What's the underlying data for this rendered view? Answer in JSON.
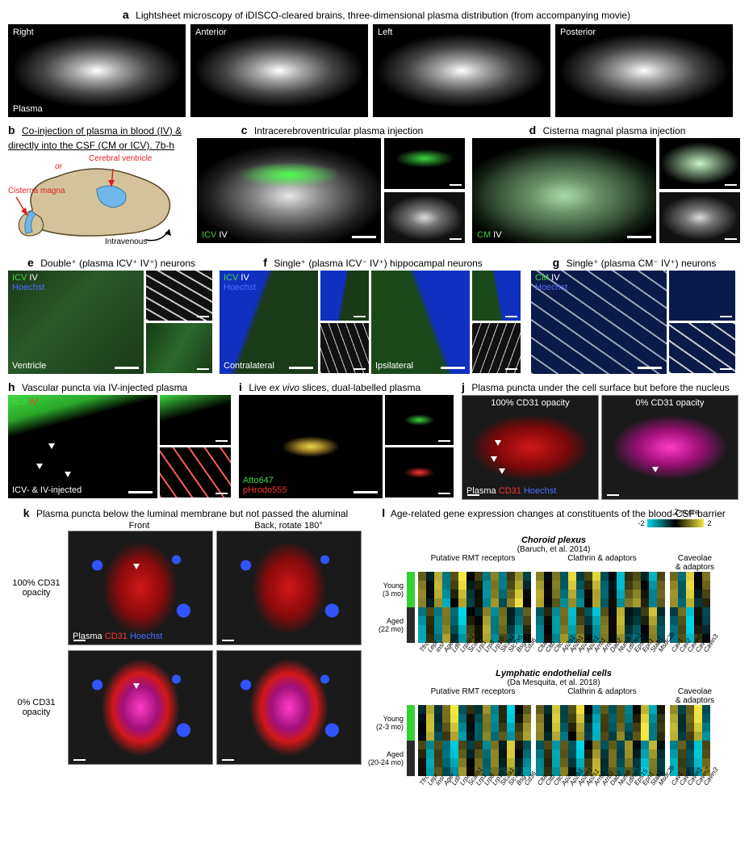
{
  "panelA": {
    "label": "a",
    "title": "Lightsheet microscopy of iDISCO-cleared brains, three-dimensional plasma distribution (from accompanying movie)",
    "views": [
      "Right",
      "Anterior",
      "Left",
      "Posterior"
    ],
    "bottom_label": "Plasma"
  },
  "panelB": {
    "label": "b",
    "title": "Co-injection of plasma in blood (IV) & directly into the CSF (CM or ICV). 7b-h",
    "labels": {
      "cm": "Cisterna magna",
      "cv": "Cerebral ventricle",
      "or": "or",
      "iv": "Intravenous"
    },
    "colors": {
      "label": "#e02020",
      "csf": "#6fb7e8",
      "brain_fill": "#d4c39a",
      "brain_stroke": "#5a4a2a"
    }
  },
  "panelC": {
    "label": "c",
    "title": "Intracerebroventricular plasma injection",
    "ch": [
      "ICV",
      "IV"
    ]
  },
  "panelD": {
    "label": "d",
    "title": "Cisterna magnal plasma injection",
    "ch": [
      "CM",
      "IV"
    ]
  },
  "panelE": {
    "label": "e",
    "title": "Double⁺ (plasma ICV⁺ IV⁺) neurons",
    "ch": [
      "ICV",
      "IV",
      "Hoechst"
    ],
    "bl": "Ventricle"
  },
  "panelF": {
    "label": "f",
    "title": "Single⁺ (plasma ICV⁻ IV⁺) hippocampal neurons",
    "ch": [
      "ICV",
      "IV",
      "Hoechst"
    ],
    "bl": [
      "Contralateral",
      "Ipsilateral"
    ]
  },
  "panelG": {
    "label": "g",
    "title": "Single⁺ (plasma CM⁻ IV⁺) neurons",
    "ch": [
      "CM",
      "IV",
      "Hoechst"
    ]
  },
  "panelH": {
    "label": "h",
    "title": "Vascular puncta via IV-injected plasma",
    "ch": [
      "ICV",
      "IV"
    ],
    "bl": "ICV- & IV-injected"
  },
  "panelI": {
    "label": "i",
    "title": "Live ex vivo slices, dual-labelled plasma",
    "ch": [
      "Atto647",
      "pHrodo555"
    ]
  },
  "panelJ": {
    "label": "j",
    "title": "Plasma puncta under the cell surface but before the nucleus",
    "cols": [
      "100% CD31 opacity",
      "0% CD31 opacity"
    ],
    "legend": [
      "Plasma",
      "CD31",
      "Hoechst"
    ]
  },
  "panelK": {
    "label": "k",
    "title": "Plasma puncta below the luminal membrane but not passed the aluminal",
    "cols": [
      "Front",
      "Back, rotate 180°"
    ],
    "rows": [
      "100% CD31 opacity",
      "0% CD31 opacity"
    ],
    "legend": [
      "Plasma",
      "CD31",
      "Hoechst"
    ]
  },
  "panelL": {
    "label": "l",
    "title": "Age-related gene expression changes at constituents of the blood-CSF barrier",
    "zscore": {
      "min": -2,
      "max": 2,
      "label": "Z-score"
    },
    "zscale_colors": [
      "#00d4e8",
      "#000000",
      "#f5e642"
    ],
    "datasets": [
      {
        "name": "Choroid plexus",
        "citation": "(Baruch, et al. 2014)",
        "row_labels": [
          "Young (3 mo)",
          "Aged (22 mo)"
        ],
        "age_colors": [
          "#35d035",
          "#2a2a2a"
        ],
        "n_reps": 4,
        "groups": [
          {
            "name": "Putative RMT receptors",
            "genes": [
              "Tfrc",
              "Lepr",
              "Insr",
              "Ager",
              "Ldlr",
              "Lrpap1",
              "Scarb1",
              "Lrp1",
              "Lrp8",
              "Lrp10",
              "Slc2a1",
              "Slc7a5",
              "Bsg",
              "Cd36"
            ],
            "young": [
              0.8,
              -0.5,
              1.2,
              -1.5,
              0.3,
              1.8,
              -0.2,
              0.5,
              -1.0,
              1.4,
              -0.8,
              0.9,
              1.6,
              -0.4
            ],
            "aged": [
              -1.2,
              0.7,
              -0.9,
              1.4,
              -0.6,
              -1.7,
              0.3,
              -0.2,
              1.1,
              -1.5,
              0.6,
              -0.7,
              -1.3,
              0.5
            ]
          },
          {
            "name": "Clathrin & adaptors",
            "genes": [
              "Clta",
              "Cltb",
              "Cltc",
              "Ap2a1",
              "Ap2b1",
              "Ap2m1",
              "Ap2s1",
              "Arrb1",
              "Arrb2",
              "Dab2",
              "Numb",
              "Ldlrap1",
              "Eps15",
              "Epn1",
              "Stab1",
              "Msdc2b"
            ],
            "young": [
              1.1,
              -0.3,
              0.7,
              -1.2,
              1.5,
              -0.9,
              0.4,
              1.8,
              -0.6,
              0.2,
              -1.4,
              0.8,
              1.0,
              -0.1,
              -1.6,
              0.5
            ],
            "aged": [
              -0.9,
              0.4,
              -1.1,
              1.3,
              -1.4,
              0.8,
              -0.5,
              -1.7,
              0.7,
              -0.3,
              1.2,
              -0.6,
              -0.8,
              0.2,
              1.5,
              -0.4
            ]
          },
          {
            "name": "Caveolae & adaptors",
            "genes": [
              "Cav1",
              "Cav2",
              "Cavin1",
              "Cavin2",
              "Cavin3"
            ],
            "young": [
              0.9,
              -1.2,
              1.5,
              -0.4,
              0.6
            ],
            "aged": [
              -0.7,
              1.0,
              -1.6,
              0.5,
              -0.3
            ]
          }
        ]
      },
      {
        "name": "Lymphatic endothelial cells",
        "citation": "(Da Mesquita, et al. 2018)",
        "row_labels": [
          "Young (2-3 mo)",
          "Aged (20-24 mo)"
        ],
        "age_colors": [
          "#35d035",
          "#2a2a2a"
        ],
        "n_reps": 4,
        "groups": [
          {
            "name": "Putative RMT receptors",
            "genes": [
              "Tfrc",
              "Lepr",
              "Insr",
              "Ager",
              "Ldlr",
              "Lrpap1",
              "Scarb1",
              "Lrp1",
              "Lrp8",
              "Lrp10",
              "Slc2a1",
              "Slc7a5",
              "Bsg",
              "Cd36"
            ],
            "young": [
              -0.4,
              1.3,
              -0.8,
              0.6,
              1.7,
              -1.1,
              0.2,
              -0.5,
              1.4,
              -0.9,
              0.7,
              -1.6,
              0.3,
              1.0
            ],
            "aged": [
              0.5,
              -1.2,
              0.9,
              -0.7,
              -1.5,
              1.0,
              -0.3,
              0.6,
              -1.3,
              0.8,
              -0.6,
              1.4,
              -0.2,
              -1.1
            ]
          },
          {
            "name": "Clathrin & adaptors",
            "genes": [
              "Clta",
              "Cltb",
              "Cltc",
              "Ap2a1",
              "Ap2b1",
              "Ap2m1",
              "Ap2s1",
              "Arrb1",
              "Arrb2",
              "Dab2",
              "Numb",
              "Ldlrap1",
              "Eps15",
              "Epn1",
              "Stab1",
              "Msdc2b"
            ],
            "young": [
              0.8,
              -0.6,
              1.4,
              -1.0,
              0.3,
              1.6,
              -0.2,
              -1.3,
              0.9,
              -0.5,
              1.1,
              -0.8,
              0.4,
              1.8,
              -1.5,
              0.1
            ],
            "aged": [
              -0.9,
              0.7,
              -1.2,
              1.1,
              -0.4,
              -1.7,
              0.3,
              1.2,
              -0.8,
              0.6,
              -1.0,
              0.9,
              -0.5,
              -1.6,
              1.4,
              -0.2
            ]
          },
          {
            "name": "Caveolae & adaptors",
            "genes": [
              "Cav1",
              "Cav2",
              "Cavin1",
              "Cavin2",
              "Cavin3"
            ],
            "young": [
              1.2,
              -0.8,
              0.5,
              1.6,
              -1.1
            ],
            "aged": [
              -1.3,
              0.9,
              -0.4,
              -1.5,
              1.0
            ]
          }
        ]
      }
    ]
  },
  "colors": {
    "green": "#3fd83f",
    "white": "#ffffff",
    "red": "#ff3333",
    "blue": "#3254ff",
    "magenta": "#ff3cc8"
  }
}
